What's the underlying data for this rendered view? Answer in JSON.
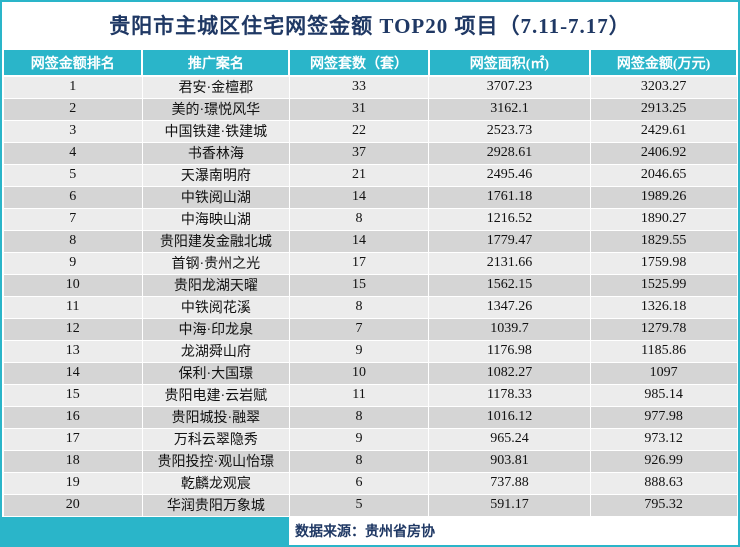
{
  "title": "贵阳市主城区住宅网签金额 TOP20 项目（7.11-7.17）",
  "colors": {
    "accent_teal": "#2ab5c9",
    "title_navy": "#1f3864",
    "row_light": "#ececec",
    "row_dark": "#d5d5d5"
  },
  "footer": {
    "source": "数据来源：贵州省房协"
  },
  "chart_data": {
    "type": "table",
    "title": "贵阳市主城区住宅网签金额 TOP20 项目（7.11-7.17）",
    "columns": [
      "网签金额排名",
      "推广案名",
      "网签套数（套）",
      "网签面积(㎡)",
      "网签金额(万元)"
    ],
    "rows": [
      [
        "1",
        "君安·金檀郡",
        "33",
        "3707.23",
        "3203.27"
      ],
      [
        "2",
        "美的·璟悦风华",
        "31",
        "3162.1",
        "2913.25"
      ],
      [
        "3",
        "中国铁建·铁建城",
        "22",
        "2523.73",
        "2429.61"
      ],
      [
        "4",
        "书香林海",
        "37",
        "2928.61",
        "2406.92"
      ],
      [
        "5",
        "天瀑南明府",
        "21",
        "2495.46",
        "2046.65"
      ],
      [
        "6",
        "中铁阅山湖",
        "14",
        "1761.18",
        "1989.26"
      ],
      [
        "7",
        "中海映山湖",
        "8",
        "1216.52",
        "1890.27"
      ],
      [
        "8",
        "贵阳建发金融北城",
        "14",
        "1779.47",
        "1829.55"
      ],
      [
        "9",
        "首钢·贵州之光",
        "17",
        "2131.66",
        "1759.98"
      ],
      [
        "10",
        "贵阳龙湖天曜",
        "15",
        "1562.15",
        "1525.99"
      ],
      [
        "11",
        "中铁阅花溪",
        "8",
        "1347.26",
        "1326.18"
      ],
      [
        "12",
        "中海·印龙泉",
        "7",
        "1039.7",
        "1279.78"
      ],
      [
        "13",
        "龙湖舜山府",
        "9",
        "1176.98",
        "1185.86"
      ],
      [
        "14",
        "保利·大国璟",
        "10",
        "1082.27",
        "1097"
      ],
      [
        "15",
        "贵阳电建·云岩赋",
        "11",
        "1178.33",
        "985.14"
      ],
      [
        "16",
        "贵阳城投·融翠",
        "8",
        "1016.12",
        "977.98"
      ],
      [
        "17",
        "万科云翠隐秀",
        "9",
        "965.24",
        "973.12"
      ],
      [
        "18",
        "贵阳投控·观山怡璟",
        "8",
        "903.81",
        "926.99"
      ],
      [
        "19",
        "乾麟龙观宸",
        "6",
        "737.88",
        "888.63"
      ],
      [
        "20",
        "华润贵阳万象城",
        "5",
        "591.17",
        "795.32"
      ]
    ],
    "source": "数据来源：贵州省房协"
  }
}
